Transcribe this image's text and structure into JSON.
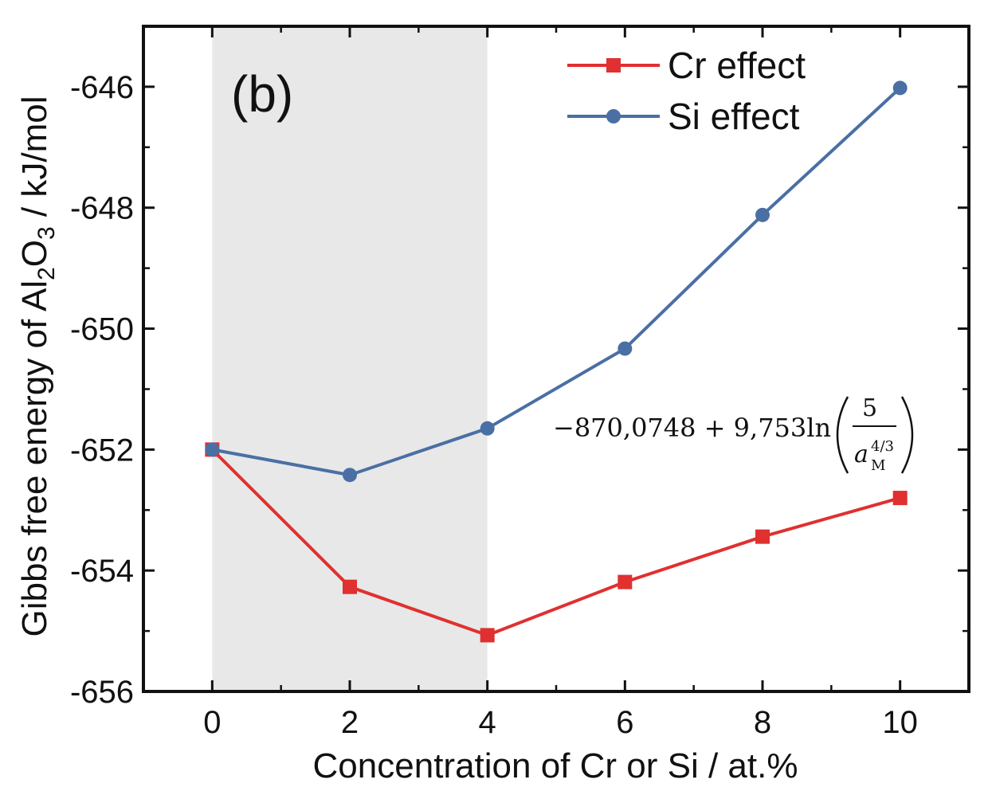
{
  "chart_data": {
    "type": "line",
    "panel_label": "(b)",
    "x": [
      0,
      2,
      4,
      6,
      8,
      10
    ],
    "series": [
      {
        "name": "Cr effect",
        "color": "#e03030",
        "marker": "square",
        "values": [
          -652.0,
          -654.27,
          -655.07,
          -654.19,
          -653.44,
          -652.8
        ]
      },
      {
        "name": "Si effect",
        "color": "#4a6fa5",
        "marker": "circle",
        "values": [
          -652.0,
          -652.42,
          -651.65,
          -650.33,
          -648.12,
          -646.02
        ]
      }
    ],
    "xlabel": "Concentration of Cr or Si / at.%",
    "ylabel": {
      "prefix": "Gibbs free energy of Al",
      "sub1": "2",
      "mid": "O",
      "sub2": "3",
      "suffix": " / kJ/mol"
    },
    "xlim": [
      -1,
      11
    ],
    "ylim": [
      -656,
      -645
    ],
    "xticks": [
      "0",
      "2",
      "4",
      "6",
      "8",
      "10"
    ],
    "yticks": [
      "-656",
      "-654",
      "-652",
      "-650",
      "-648",
      "-646"
    ],
    "shaded_region": {
      "x": [
        0,
        4
      ],
      "color": "#e8e8e8"
    },
    "annotation": {
      "text": "−870,0748 + 9,753ln",
      "fraction_numerator": "5",
      "fraction_denominator_base": "a",
      "fraction_denominator_sub": "M",
      "fraction_denominator_sup": "4/3"
    },
    "legend_position": "top-right",
    "grid": false
  }
}
